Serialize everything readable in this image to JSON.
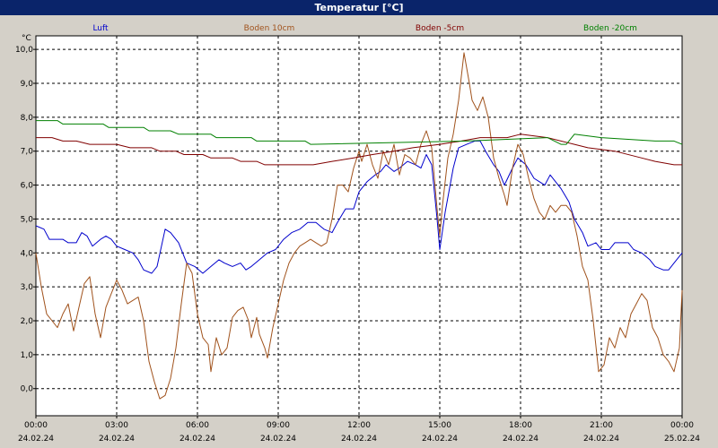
{
  "window": {
    "title": "Temperatur [°C]"
  },
  "chart_data": {
    "type": "line",
    "title": "Temperatur [°C]",
    "ylabel": "°C",
    "xlabel": "",
    "ylim": [
      -0.8,
      10.4
    ],
    "xlim": [
      0,
      24
    ],
    "grid": true,
    "legend_position": "top",
    "yticks": [
      {
        "value": 0,
        "label": "0,0"
      },
      {
        "value": 1,
        "label": "1,0"
      },
      {
        "value": 2,
        "label": "2,0"
      },
      {
        "value": 3,
        "label": "3,0"
      },
      {
        "value": 4,
        "label": "4,0"
      },
      {
        "value": 5,
        "label": "5,0"
      },
      {
        "value": 6,
        "label": "6,0"
      },
      {
        "value": 7,
        "label": "7,0"
      },
      {
        "value": 8,
        "label": "8,0"
      },
      {
        "value": 9,
        "label": "9,0"
      },
      {
        "value": 10,
        "label": "10,0"
      }
    ],
    "xticks": [
      {
        "value": 0,
        "time": "00:00",
        "date": "24.02.24"
      },
      {
        "value": 3,
        "time": "03:00",
        "date": "24.02.24"
      },
      {
        "value": 6,
        "time": "06:00",
        "date": "24.02.24"
      },
      {
        "value": 9,
        "time": "09:00",
        "date": "24.02.24"
      },
      {
        "value": 12,
        "time": "12:00",
        "date": "24.02.24"
      },
      {
        "value": 15,
        "time": "15:00",
        "date": "24.02.24"
      },
      {
        "value": 18,
        "time": "18:00",
        "date": "24.02.24"
      },
      {
        "value": 21,
        "time": "21:00",
        "date": "24.02.24"
      },
      {
        "value": 24,
        "time": "00:00",
        "date": "25.02.24"
      }
    ],
    "series": [
      {
        "name": "Luft",
        "color": "#0000cc",
        "points": [
          [
            0,
            4.8
          ],
          [
            0.3,
            4.7
          ],
          [
            0.5,
            4.4
          ],
          [
            1.0,
            4.4
          ],
          [
            1.2,
            4.3
          ],
          [
            1.5,
            4.3
          ],
          [
            1.7,
            4.6
          ],
          [
            1.9,
            4.5
          ],
          [
            2.1,
            4.2
          ],
          [
            2.4,
            4.4
          ],
          [
            2.6,
            4.5
          ],
          [
            2.8,
            4.4
          ],
          [
            3.0,
            4.2
          ],
          [
            3.3,
            4.1
          ],
          [
            3.6,
            4.0
          ],
          [
            3.8,
            3.8
          ],
          [
            4.0,
            3.5
          ],
          [
            4.3,
            3.4
          ],
          [
            4.5,
            3.6
          ],
          [
            4.8,
            4.7
          ],
          [
            5.0,
            4.6
          ],
          [
            5.3,
            4.3
          ],
          [
            5.6,
            3.7
          ],
          [
            5.9,
            3.6
          ],
          [
            6.2,
            3.4
          ],
          [
            6.5,
            3.6
          ],
          [
            6.8,
            3.8
          ],
          [
            7.0,
            3.7
          ],
          [
            7.3,
            3.6
          ],
          [
            7.6,
            3.7
          ],
          [
            7.8,
            3.5
          ],
          [
            8.0,
            3.6
          ],
          [
            8.3,
            3.8
          ],
          [
            8.6,
            4.0
          ],
          [
            8.9,
            4.1
          ],
          [
            9.2,
            4.4
          ],
          [
            9.5,
            4.6
          ],
          [
            9.8,
            4.7
          ],
          [
            10.1,
            4.9
          ],
          [
            10.4,
            4.9
          ],
          [
            10.7,
            4.7
          ],
          [
            11.0,
            4.6
          ],
          [
            11.2,
            4.9
          ],
          [
            11.5,
            5.3
          ],
          [
            11.8,
            5.3
          ],
          [
            12.0,
            5.8
          ],
          [
            12.3,
            6.1
          ],
          [
            12.6,
            6.3
          ],
          [
            12.8,
            6.4
          ],
          [
            13.0,
            6.6
          ],
          [
            13.3,
            6.4
          ],
          [
            13.5,
            6.5
          ],
          [
            13.8,
            6.7
          ],
          [
            14.1,
            6.6
          ],
          [
            14.3,
            6.5
          ],
          [
            14.5,
            6.9
          ],
          [
            14.7,
            6.6
          ],
          [
            14.9,
            5.0
          ],
          [
            15.0,
            4.1
          ],
          [
            15.2,
            5.2
          ],
          [
            15.5,
            6.5
          ],
          [
            15.7,
            7.1
          ],
          [
            16.0,
            7.2
          ],
          [
            16.3,
            7.3
          ],
          [
            16.5,
            7.3
          ],
          [
            16.7,
            7.0
          ],
          [
            17.0,
            6.6
          ],
          [
            17.2,
            6.4
          ],
          [
            17.4,
            6.0
          ],
          [
            17.7,
            6.5
          ],
          [
            17.9,
            6.8
          ],
          [
            18.2,
            6.6
          ],
          [
            18.5,
            6.2
          ],
          [
            18.7,
            6.1
          ],
          [
            18.9,
            6.0
          ],
          [
            19.1,
            6.3
          ],
          [
            19.3,
            6.1
          ],
          [
            19.5,
            5.9
          ],
          [
            19.8,
            5.5
          ],
          [
            20.0,
            5.0
          ],
          [
            20.3,
            4.6
          ],
          [
            20.5,
            4.2
          ],
          [
            20.8,
            4.3
          ],
          [
            21.0,
            4.1
          ],
          [
            21.3,
            4.1
          ],
          [
            21.5,
            4.3
          ],
          [
            21.8,
            4.3
          ],
          [
            22.0,
            4.3
          ],
          [
            22.2,
            4.1
          ],
          [
            22.5,
            4.0
          ],
          [
            22.8,
            3.8
          ],
          [
            23.0,
            3.6
          ],
          [
            23.3,
            3.5
          ],
          [
            23.5,
            3.5
          ],
          [
            23.7,
            3.7
          ],
          [
            24.0,
            4.0
          ]
        ]
      },
      {
        "name": "Boden 10cm",
        "color": "#a0521c",
        "points": [
          [
            0,
            4.0
          ],
          [
            0.2,
            3.0
          ],
          [
            0.4,
            2.2
          ],
          [
            0.6,
            2.0
          ],
          [
            0.8,
            1.8
          ],
          [
            1.0,
            2.2
          ],
          [
            1.2,
            2.5
          ],
          [
            1.4,
            1.7
          ],
          [
            1.6,
            2.4
          ],
          [
            1.8,
            3.1
          ],
          [
            2.0,
            3.3
          ],
          [
            2.2,
            2.2
          ],
          [
            2.4,
            1.5
          ],
          [
            2.6,
            2.4
          ],
          [
            2.8,
            2.8
          ],
          [
            3.0,
            3.2
          ],
          [
            3.2,
            2.9
          ],
          [
            3.4,
            2.5
          ],
          [
            3.6,
            2.6
          ],
          [
            3.8,
            2.7
          ],
          [
            4.0,
            2.0
          ],
          [
            4.2,
            0.8
          ],
          [
            4.4,
            0.2
          ],
          [
            4.6,
            -0.3
          ],
          [
            4.8,
            -0.2
          ],
          [
            5.0,
            0.3
          ],
          [
            5.2,
            1.2
          ],
          [
            5.4,
            2.5
          ],
          [
            5.6,
            3.7
          ],
          [
            5.8,
            3.4
          ],
          [
            6.0,
            2.2
          ],
          [
            6.2,
            1.5
          ],
          [
            6.4,
            1.3
          ],
          [
            6.5,
            0.5
          ],
          [
            6.7,
            1.5
          ],
          [
            6.9,
            1.0
          ],
          [
            7.1,
            1.2
          ],
          [
            7.3,
            2.1
          ],
          [
            7.5,
            2.3
          ],
          [
            7.7,
            2.4
          ],
          [
            7.9,
            2.0
          ],
          [
            8.0,
            1.5
          ],
          [
            8.2,
            2.1
          ],
          [
            8.3,
            1.6
          ],
          [
            8.5,
            1.2
          ],
          [
            8.6,
            0.9
          ],
          [
            8.8,
            1.8
          ],
          [
            9.0,
            2.5
          ],
          [
            9.2,
            3.2
          ],
          [
            9.4,
            3.7
          ],
          [
            9.6,
            4.0
          ],
          [
            9.8,
            4.2
          ],
          [
            10.0,
            4.3
          ],
          [
            10.2,
            4.4
          ],
          [
            10.4,
            4.3
          ],
          [
            10.6,
            4.2
          ],
          [
            10.8,
            4.3
          ],
          [
            11.0,
            5.0
          ],
          [
            11.2,
            6.0
          ],
          [
            11.4,
            6.0
          ],
          [
            11.6,
            5.8
          ],
          [
            11.8,
            6.5
          ],
          [
            12.0,
            7.0
          ],
          [
            12.1,
            6.7
          ],
          [
            12.3,
            7.2
          ],
          [
            12.5,
            6.6
          ],
          [
            12.7,
            6.2
          ],
          [
            12.9,
            7.0
          ],
          [
            13.1,
            6.6
          ],
          [
            13.3,
            7.2
          ],
          [
            13.5,
            6.3
          ],
          [
            13.7,
            6.9
          ],
          [
            13.9,
            6.8
          ],
          [
            14.1,
            6.6
          ],
          [
            14.3,
            7.2
          ],
          [
            14.5,
            7.6
          ],
          [
            14.7,
            7.1
          ],
          [
            14.9,
            5.3
          ],
          [
            15.0,
            4.5
          ],
          [
            15.1,
            5.4
          ],
          [
            15.3,
            6.8
          ],
          [
            15.5,
            7.5
          ],
          [
            15.7,
            8.5
          ],
          [
            15.9,
            9.9
          ],
          [
            16.1,
            9.0
          ],
          [
            16.2,
            8.5
          ],
          [
            16.4,
            8.2
          ],
          [
            16.6,
            8.6
          ],
          [
            16.8,
            8.0
          ],
          [
            17.0,
            6.8
          ],
          [
            17.2,
            6.2
          ],
          [
            17.4,
            5.7
          ],
          [
            17.5,
            5.4
          ],
          [
            17.7,
            6.5
          ],
          [
            17.9,
            7.2
          ],
          [
            18.1,
            6.9
          ],
          [
            18.3,
            6.2
          ],
          [
            18.5,
            5.6
          ],
          [
            18.7,
            5.2
          ],
          [
            18.9,
            5.0
          ],
          [
            19.1,
            5.4
          ],
          [
            19.3,
            5.2
          ],
          [
            19.5,
            5.4
          ],
          [
            19.7,
            5.4
          ],
          [
            19.9,
            5.2
          ],
          [
            20.1,
            4.5
          ],
          [
            20.3,
            3.6
          ],
          [
            20.5,
            3.2
          ],
          [
            20.7,
            2.0
          ],
          [
            20.9,
            0.5
          ],
          [
            21.1,
            0.7
          ],
          [
            21.3,
            1.5
          ],
          [
            21.5,
            1.2
          ],
          [
            21.7,
            1.8
          ],
          [
            21.9,
            1.5
          ],
          [
            22.1,
            2.2
          ],
          [
            22.3,
            2.5
          ],
          [
            22.5,
            2.8
          ],
          [
            22.7,
            2.6
          ],
          [
            22.9,
            1.8
          ],
          [
            23.1,
            1.5
          ],
          [
            23.3,
            1.0
          ],
          [
            23.5,
            0.8
          ],
          [
            23.7,
            0.5
          ],
          [
            23.9,
            1.2
          ],
          [
            24.0,
            2.9
          ]
        ]
      },
      {
        "name": "Boden -5cm",
        "color": "#800000",
        "points": [
          [
            0,
            7.4
          ],
          [
            0.6,
            7.4
          ],
          [
            1.0,
            7.3
          ],
          [
            1.5,
            7.3
          ],
          [
            2.0,
            7.2
          ],
          [
            3.0,
            7.2
          ],
          [
            3.5,
            7.1
          ],
          [
            4.3,
            7.1
          ],
          [
            4.6,
            7.0
          ],
          [
            5.2,
            7.0
          ],
          [
            5.5,
            6.9
          ],
          [
            6.2,
            6.9
          ],
          [
            6.5,
            6.8
          ],
          [
            7.3,
            6.8
          ],
          [
            7.6,
            6.7
          ],
          [
            8.2,
            6.7
          ],
          [
            8.5,
            6.6
          ],
          [
            10.0,
            6.6
          ],
          [
            10.3,
            6.6
          ],
          [
            11.0,
            6.7
          ],
          [
            11.8,
            6.8
          ],
          [
            12.5,
            6.9
          ],
          [
            13.3,
            7.0
          ],
          [
            14.0,
            7.1
          ],
          [
            15.0,
            7.2
          ],
          [
            15.8,
            7.3
          ],
          [
            16.5,
            7.4
          ],
          [
            17.5,
            7.4
          ],
          [
            18.0,
            7.5
          ],
          [
            19.0,
            7.4
          ],
          [
            20.0,
            7.2
          ],
          [
            20.5,
            7.1
          ],
          [
            21.5,
            7.0
          ],
          [
            22.5,
            6.8
          ],
          [
            23.0,
            6.7
          ],
          [
            23.7,
            6.6
          ],
          [
            24.0,
            6.6
          ]
        ]
      },
      {
        "name": "Boden -20cm",
        "color": "#008000",
        "points": [
          [
            0,
            7.9
          ],
          [
            0.8,
            7.9
          ],
          [
            1.0,
            7.8
          ],
          [
            2.5,
            7.8
          ],
          [
            2.7,
            7.7
          ],
          [
            4.0,
            7.7
          ],
          [
            4.2,
            7.6
          ],
          [
            5.0,
            7.6
          ],
          [
            5.3,
            7.5
          ],
          [
            6.5,
            7.5
          ],
          [
            6.7,
            7.4
          ],
          [
            8.0,
            7.4
          ],
          [
            8.2,
            7.3
          ],
          [
            10.0,
            7.3
          ],
          [
            10.2,
            7.2
          ],
          [
            19.5,
            7.2
          ],
          [
            19.7,
            7.2
          ],
          [
            16.0,
            7.3
          ],
          [
            19.0,
            7.4
          ],
          [
            20.0,
            7.5
          ],
          [
            21.0,
            7.4
          ],
          [
            23.0,
            7.3
          ],
          [
            23.7,
            7.3
          ],
          [
            24.0,
            7.2
          ]
        ]
      }
    ]
  }
}
